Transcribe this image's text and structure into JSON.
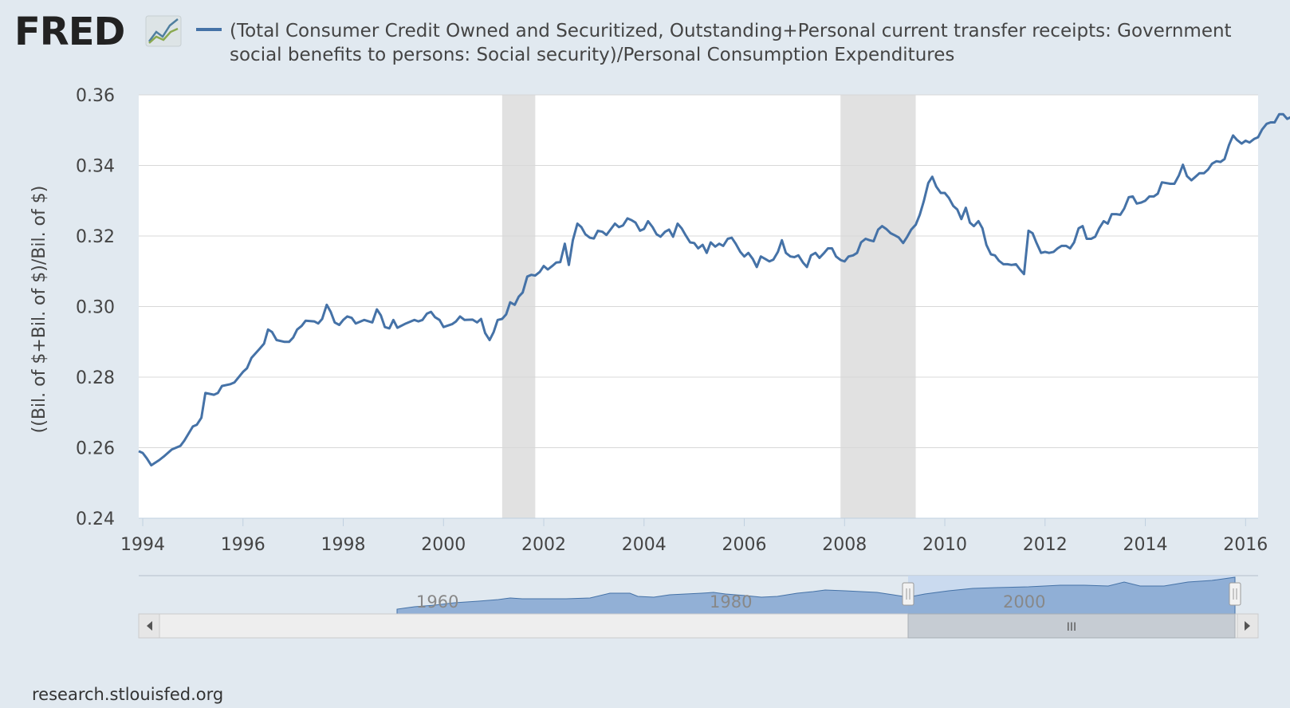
{
  "header": {
    "logo_text": "FRED",
    "title_line1": "(Total Consumer Credit Owned and Securitized, Outstanding+Personal current transfer receipts: Government",
    "title_line2": "social benefits to persons: Social security)/Personal Consumption Expenditures"
  },
  "footer": {
    "source": "research.stlouisfed.org"
  },
  "colors": {
    "series": "#4572a7",
    "recession": "#e1e1e1",
    "background": "#e1e9f0",
    "plot_background": "#ffffff",
    "navigator_fill": "#8fa9cd",
    "navigator_selected": "#c8d8ee"
  },
  "navigator": {
    "labels": [
      "1960",
      "1980",
      "2000"
    ],
    "scrollbar_grip": "III"
  },
  "chart_data": {
    "type": "line",
    "title": "(Total Consumer Credit Owned and Securitized, Outstanding+Personal current transfer receipts: Government social benefits to persons: Social security)/Personal Consumption Expenditures",
    "xlabel": "",
    "ylabel": "((Bil. of $+Bil. of $)/Bil. of $)",
    "xlim": [
      1993.92,
      2016.25
    ],
    "ylim": [
      0.24,
      0.36
    ],
    "x_ticks": [
      1994,
      1996,
      1998,
      2000,
      2002,
      2004,
      2006,
      2008,
      2010,
      2012,
      2014,
      2016
    ],
    "y_ticks": [
      0.24,
      0.26,
      0.28,
      0.3,
      0.32,
      0.34,
      0.36
    ],
    "y_tick_labels": [
      "0.24",
      "0.26",
      "0.28",
      "0.30",
      "0.32",
      "0.34",
      "0.36"
    ],
    "grid": true,
    "legend": "top-left",
    "recessions": [
      [
        2001.17,
        2001.83
      ],
      [
        2007.92,
        2009.42
      ]
    ],
    "series": [
      {
        "name": "(Total Consumer Credit Owned and Securitized, Outstanding+Personal current transfer receipts: Government social benefits to persons: Social security)/Personal Consumption Expenditures",
        "points": [
          [
            1993.92,
            0.259
          ],
          [
            1994.0,
            0.2585
          ],
          [
            1994.08,
            0.257
          ],
          [
            1994.17,
            0.255
          ],
          [
            1994.33,
            0.2565
          ],
          [
            1994.42,
            0.2575
          ],
          [
            1994.58,
            0.2595
          ],
          [
            1994.75,
            0.2605
          ],
          [
            1994.83,
            0.262
          ],
          [
            1995.0,
            0.266
          ],
          [
            1995.08,
            0.2665
          ],
          [
            1995.17,
            0.2685
          ],
          [
            1995.25,
            0.2755
          ],
          [
            1995.42,
            0.275
          ],
          [
            1995.5,
            0.2755
          ],
          [
            1995.58,
            0.2775
          ],
          [
            1995.75,
            0.278
          ],
          [
            1995.83,
            0.2785
          ],
          [
            1996.0,
            0.2815
          ],
          [
            1996.08,
            0.2825
          ],
          [
            1996.17,
            0.2855
          ],
          [
            1996.33,
            0.288
          ],
          [
            1996.42,
            0.2895
          ],
          [
            1996.5,
            0.2935
          ],
          [
            1996.58,
            0.2928
          ],
          [
            1996.67,
            0.2905
          ],
          [
            1996.83,
            0.29
          ],
          [
            1996.92,
            0.29
          ],
          [
            1997.0,
            0.2912
          ],
          [
            1997.08,
            0.2935
          ],
          [
            1997.17,
            0.2945
          ],
          [
            1997.25,
            0.296
          ],
          [
            1997.42,
            0.2958
          ],
          [
            1997.5,
            0.2952
          ],
          [
            1997.58,
            0.2965
          ],
          [
            1997.67,
            0.3005
          ],
          [
            1997.75,
            0.2985
          ],
          [
            1997.83,
            0.2955
          ],
          [
            1997.92,
            0.2948
          ],
          [
            1998.0,
            0.2962
          ],
          [
            1998.08,
            0.2972
          ],
          [
            1998.17,
            0.2968
          ],
          [
            1998.25,
            0.2952
          ],
          [
            1998.42,
            0.2962
          ],
          [
            1998.58,
            0.2955
          ],
          [
            1998.67,
            0.2992
          ],
          [
            1998.75,
            0.2975
          ],
          [
            1998.83,
            0.2942
          ],
          [
            1998.92,
            0.2938
          ],
          [
            1999.0,
            0.2962
          ],
          [
            1999.08,
            0.294
          ],
          [
            1999.25,
            0.2952
          ],
          [
            1999.42,
            0.2962
          ],
          [
            1999.5,
            0.2958
          ],
          [
            1999.58,
            0.2962
          ],
          [
            1999.67,
            0.298
          ],
          [
            1999.75,
            0.2985
          ],
          [
            1999.83,
            0.297
          ],
          [
            1999.92,
            0.2962
          ],
          [
            2000.0,
            0.2942
          ],
          [
            2000.17,
            0.295
          ],
          [
            2000.25,
            0.2958
          ],
          [
            2000.33,
            0.2972
          ],
          [
            2000.42,
            0.2962
          ],
          [
            2000.58,
            0.2963
          ],
          [
            2000.67,
            0.2955
          ],
          [
            2000.75,
            0.2965
          ],
          [
            2000.83,
            0.2925
          ],
          [
            2000.92,
            0.2905
          ],
          [
            2001.0,
            0.2928
          ],
          [
            2001.08,
            0.2962
          ],
          [
            2001.17,
            0.2965
          ],
          [
            2001.25,
            0.2978
          ],
          [
            2001.33,
            0.3012
          ],
          [
            2001.42,
            0.3005
          ],
          [
            2001.5,
            0.3028
          ],
          [
            2001.58,
            0.304
          ],
          [
            2001.67,
            0.3085
          ],
          [
            2001.75,
            0.309
          ],
          [
            2001.83,
            0.3088
          ],
          [
            2001.92,
            0.3098
          ],
          [
            2002.0,
            0.3115
          ],
          [
            2002.08,
            0.3105
          ],
          [
            2002.17,
            0.3115
          ],
          [
            2002.25,
            0.3125
          ],
          [
            2002.33,
            0.3126
          ],
          [
            2002.42,
            0.3178
          ],
          [
            2002.5,
            0.3118
          ],
          [
            2002.58,
            0.3188
          ],
          [
            2002.67,
            0.3235
          ],
          [
            2002.75,
            0.3225
          ],
          [
            2002.83,
            0.3205
          ],
          [
            2002.92,
            0.3195
          ],
          [
            2003.0,
            0.3193
          ],
          [
            2003.08,
            0.3215
          ],
          [
            2003.17,
            0.3212
          ],
          [
            2003.25,
            0.3203
          ],
          [
            2003.33,
            0.3218
          ],
          [
            2003.42,
            0.3235
          ],
          [
            2003.5,
            0.3225
          ],
          [
            2003.58,
            0.323
          ],
          [
            2003.67,
            0.325
          ],
          [
            2003.75,
            0.3245
          ],
          [
            2003.83,
            0.3238
          ],
          [
            2003.92,
            0.3215
          ],
          [
            2004.0,
            0.322
          ],
          [
            2004.08,
            0.3242
          ],
          [
            2004.17,
            0.3225
          ],
          [
            2004.25,
            0.3205
          ],
          [
            2004.33,
            0.3198
          ],
          [
            2004.42,
            0.3212
          ],
          [
            2004.5,
            0.3218
          ],
          [
            2004.58,
            0.3198
          ],
          [
            2004.67,
            0.3235
          ],
          [
            2004.75,
            0.3222
          ],
          [
            2004.83,
            0.3202
          ],
          [
            2004.92,
            0.3182
          ],
          [
            2005.0,
            0.318
          ],
          [
            2005.08,
            0.3165
          ],
          [
            2005.17,
            0.3175
          ],
          [
            2005.25,
            0.3152
          ],
          [
            2005.33,
            0.3182
          ],
          [
            2005.42,
            0.317
          ],
          [
            2005.5,
            0.3178
          ],
          [
            2005.58,
            0.3172
          ],
          [
            2005.67,
            0.3192
          ],
          [
            2005.75,
            0.3195
          ],
          [
            2005.83,
            0.3178
          ],
          [
            2005.92,
            0.3155
          ],
          [
            2006.0,
            0.3142
          ],
          [
            2006.08,
            0.3152
          ],
          [
            2006.17,
            0.3135
          ],
          [
            2006.25,
            0.3112
          ],
          [
            2006.33,
            0.3142
          ],
          [
            2006.42,
            0.3135
          ],
          [
            2006.5,
            0.3128
          ],
          [
            2006.58,
            0.3133
          ],
          [
            2006.67,
            0.3155
          ],
          [
            2006.75,
            0.3188
          ],
          [
            2006.83,
            0.3152
          ],
          [
            2006.92,
            0.3142
          ],
          [
            2007.0,
            0.314
          ],
          [
            2007.08,
            0.3145
          ],
          [
            2007.17,
            0.3125
          ],
          [
            2007.25,
            0.3112
          ],
          [
            2007.33,
            0.3145
          ],
          [
            2007.42,
            0.3152
          ],
          [
            2007.5,
            0.3138
          ],
          [
            2007.58,
            0.315
          ],
          [
            2007.67,
            0.3165
          ],
          [
            2007.75,
            0.3165
          ],
          [
            2007.83,
            0.3142
          ],
          [
            2007.92,
            0.3132
          ],
          [
            2008.0,
            0.3128
          ],
          [
            2008.08,
            0.3142
          ],
          [
            2008.17,
            0.3145
          ],
          [
            2008.25,
            0.3152
          ],
          [
            2008.33,
            0.3182
          ],
          [
            2008.42,
            0.3192
          ],
          [
            2008.5,
            0.3188
          ],
          [
            2008.58,
            0.3185
          ],
          [
            2008.67,
            0.3218
          ],
          [
            2008.75,
            0.3228
          ],
          [
            2008.83,
            0.322
          ],
          [
            2008.92,
            0.3208
          ],
          [
            2009.0,
            0.3202
          ],
          [
            2009.08,
            0.3196
          ],
          [
            2009.17,
            0.318
          ],
          [
            2009.25,
            0.3198
          ],
          [
            2009.33,
            0.3218
          ],
          [
            2009.42,
            0.3232
          ],
          [
            2009.5,
            0.326
          ],
          [
            2009.58,
            0.3298
          ],
          [
            2009.67,
            0.335
          ],
          [
            2009.75,
            0.3368
          ],
          [
            2009.83,
            0.334
          ],
          [
            2009.92,
            0.3322
          ],
          [
            2010.0,
            0.3322
          ],
          [
            2010.08,
            0.3308
          ],
          [
            2010.17,
            0.3285
          ],
          [
            2010.25,
            0.3275
          ],
          [
            2010.33,
            0.3248
          ],
          [
            2010.42,
            0.328
          ],
          [
            2010.5,
            0.3238
          ],
          [
            2010.58,
            0.3228
          ],
          [
            2010.67,
            0.3242
          ],
          [
            2010.75,
            0.3222
          ],
          [
            2010.83,
            0.3175
          ],
          [
            2010.92,
            0.3148
          ],
          [
            2011.0,
            0.3145
          ],
          [
            2011.08,
            0.313
          ],
          [
            2011.17,
            0.312
          ],
          [
            2011.25,
            0.312
          ],
          [
            2011.33,
            0.3118
          ],
          [
            2011.42,
            0.312
          ],
          [
            2011.5,
            0.3105
          ],
          [
            2011.58,
            0.3092
          ],
          [
            2011.67,
            0.3215
          ],
          [
            2011.75,
            0.3208
          ],
          [
            2011.83,
            0.318
          ],
          [
            2011.92,
            0.3152
          ],
          [
            2012.0,
            0.3155
          ],
          [
            2012.08,
            0.3152
          ],
          [
            2012.17,
            0.3155
          ],
          [
            2012.25,
            0.3165
          ],
          [
            2012.33,
            0.3172
          ],
          [
            2012.42,
            0.3172
          ],
          [
            2012.5,
            0.3165
          ],
          [
            2012.58,
            0.3182
          ],
          [
            2012.67,
            0.3222
          ],
          [
            2012.75,
            0.3228
          ],
          [
            2012.83,
            0.3192
          ],
          [
            2012.92,
            0.3192
          ],
          [
            2013.0,
            0.3198
          ],
          [
            2013.08,
            0.3222
          ],
          [
            2013.17,
            0.3242
          ],
          [
            2013.25,
            0.3235
          ],
          [
            2013.33,
            0.3262
          ],
          [
            2013.42,
            0.3262
          ],
          [
            2013.5,
            0.326
          ],
          [
            2013.58,
            0.3278
          ],
          [
            2013.67,
            0.331
          ],
          [
            2013.75,
            0.3312
          ],
          [
            2013.83,
            0.3292
          ],
          [
            2013.92,
            0.3295
          ],
          [
            2014.0,
            0.33
          ],
          [
            2014.08,
            0.3312
          ],
          [
            2014.17,
            0.3312
          ],
          [
            2014.25,
            0.332
          ],
          [
            2014.33,
            0.3352
          ],
          [
            2014.5,
            0.3348
          ],
          [
            2014.58,
            0.3348
          ],
          [
            2014.67,
            0.3372
          ],
          [
            2014.75,
            0.3402
          ],
          [
            2014.83,
            0.337
          ],
          [
            2014.92,
            0.3358
          ],
          [
            2015.0,
            0.3368
          ],
          [
            2015.08,
            0.3378
          ],
          [
            2015.17,
            0.3378
          ],
          [
            2015.25,
            0.3388
          ],
          [
            2015.33,
            0.3405
          ],
          [
            2015.42,
            0.3412
          ],
          [
            2015.5,
            0.341
          ],
          [
            2015.58,
            0.3418
          ],
          [
            2015.67,
            0.3458
          ],
          [
            2015.75,
            0.3485
          ],
          [
            2015.83,
            0.3472
          ],
          [
            2015.92,
            0.3462
          ],
          [
            2016.0,
            0.347
          ],
          [
            2016.08,
            0.3465
          ],
          [
            2016.17,
            0.3475
          ],
          [
            2016.25,
            0.348
          ],
          [
            2016.33,
            0.3502
          ],
          [
            2016.42,
            0.3518
          ],
          [
            2016.5,
            0.3522
          ],
          [
            2016.58,
            0.3522
          ],
          [
            2016.67,
            0.3545
          ],
          [
            2016.75,
            0.3545
          ],
          [
            2016.83,
            0.3532
          ],
          [
            2016.92,
            0.3538
          ]
        ]
      }
    ]
  }
}
